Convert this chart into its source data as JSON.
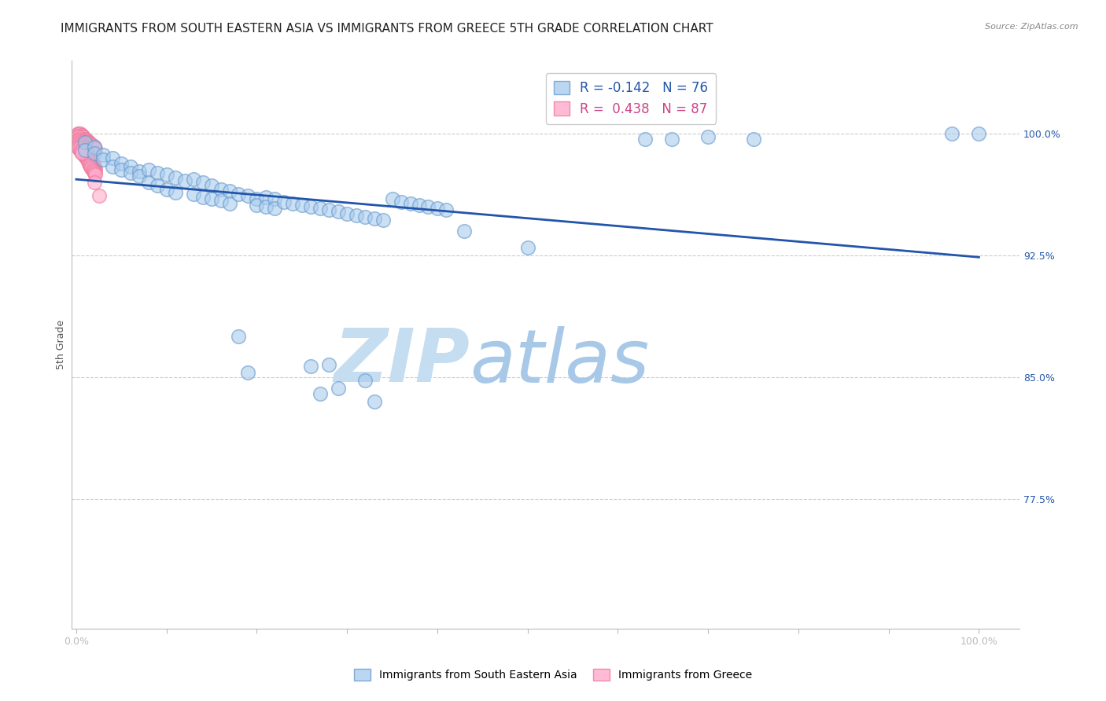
{
  "title": "IMMIGRANTS FROM SOUTH EASTERN ASIA VS IMMIGRANTS FROM GREECE 5TH GRADE CORRELATION CHART",
  "source": "Source: ZipAtlas.com",
  "ylabel": "5th Grade",
  "legend_blue_r": "R = -0.142",
  "legend_blue_n": "N = 76",
  "legend_pink_r": "R =  0.438",
  "legend_pink_n": "N = 87",
  "blue_color": "#aaccee",
  "blue_edge_color": "#6699cc",
  "pink_color": "#ffaacc",
  "pink_edge_color": "#ee7799",
  "trendline_color": "#2255aa",
  "ytick_labels": [
    "100.0%",
    "92.5%",
    "85.0%",
    "77.5%"
  ],
  "ytick_values": [
    1.0,
    0.925,
    0.85,
    0.775
  ],
  "ymin": 0.695,
  "ymax": 1.045,
  "xmin": -0.005,
  "xmax": 1.045,
  "trendline_x0": 0.0,
  "trendline_y0": 0.972,
  "trendline_x1": 1.0,
  "trendline_y1": 0.924,
  "blue_scatter_x": [
    0.01,
    0.01,
    0.02,
    0.02,
    0.03,
    0.03,
    0.04,
    0.04,
    0.05,
    0.05,
    0.06,
    0.06,
    0.07,
    0.07,
    0.08,
    0.08,
    0.09,
    0.09,
    0.1,
    0.1,
    0.11,
    0.11,
    0.12,
    0.13,
    0.13,
    0.14,
    0.14,
    0.15,
    0.15,
    0.16,
    0.16,
    0.17,
    0.17,
    0.18,
    0.19,
    0.2,
    0.2,
    0.21,
    0.21,
    0.22,
    0.22,
    0.23,
    0.24,
    0.25,
    0.26,
    0.27,
    0.28,
    0.29,
    0.3,
    0.31,
    0.32,
    0.33,
    0.34,
    0.35,
    0.36,
    0.37,
    0.38,
    0.39,
    0.4,
    0.41,
    0.43,
    0.5,
    0.63,
    0.66,
    0.7,
    0.75,
    0.97,
    1.0,
    0.18,
    0.19,
    0.26,
    0.27,
    0.28,
    0.29,
    0.32,
    0.33
  ],
  "blue_scatter_y": [
    0.995,
    0.99,
    0.992,
    0.988,
    0.987,
    0.984,
    0.985,
    0.98,
    0.982,
    0.978,
    0.98,
    0.976,
    0.977,
    0.974,
    0.978,
    0.97,
    0.976,
    0.968,
    0.975,
    0.966,
    0.973,
    0.964,
    0.971,
    0.972,
    0.963,
    0.97,
    0.961,
    0.968,
    0.96,
    0.966,
    0.959,
    0.965,
    0.957,
    0.963,
    0.962,
    0.96,
    0.956,
    0.961,
    0.955,
    0.96,
    0.954,
    0.958,
    0.957,
    0.956,
    0.955,
    0.954,
    0.953,
    0.952,
    0.951,
    0.95,
    0.949,
    0.948,
    0.947,
    0.96,
    0.958,
    0.957,
    0.956,
    0.955,
    0.954,
    0.953,
    0.94,
    0.93,
    0.997,
    0.997,
    0.998,
    0.997,
    1.0,
    1.0,
    0.875,
    0.853,
    0.857,
    0.84,
    0.858,
    0.843,
    0.848,
    0.835
  ],
  "pink_scatter_x": [
    0.002,
    0.003,
    0.004,
    0.005,
    0.006,
    0.007,
    0.008,
    0.009,
    0.01,
    0.011,
    0.012,
    0.013,
    0.014,
    0.015,
    0.016,
    0.017,
    0.018,
    0.019,
    0.02,
    0.021,
    0.002,
    0.003,
    0.004,
    0.005,
    0.006,
    0.007,
    0.008,
    0.009,
    0.01,
    0.011,
    0.012,
    0.013,
    0.014,
    0.015,
    0.016,
    0.017,
    0.018,
    0.019,
    0.02,
    0.021,
    0.002,
    0.003,
    0.004,
    0.005,
    0.006,
    0.007,
    0.008,
    0.009,
    0.01,
    0.011,
    0.012,
    0.013,
    0.014,
    0.015,
    0.016,
    0.017,
    0.018,
    0.019,
    0.02,
    0.021,
    0.002,
    0.003,
    0.004,
    0.005,
    0.006,
    0.007,
    0.008,
    0.009,
    0.01,
    0.011,
    0.012,
    0.013,
    0.014,
    0.015,
    0.016,
    0.017,
    0.018,
    0.019,
    0.02,
    0.021,
    0.002,
    0.003,
    0.004,
    0.005,
    0.006,
    0.02,
    0.025
  ],
  "pink_scatter_y": [
    1.0,
    1.0,
    1.0,
    0.999,
    0.999,
    0.998,
    0.998,
    0.997,
    0.997,
    0.996,
    0.996,
    0.995,
    0.995,
    0.994,
    0.994,
    0.993,
    0.993,
    0.992,
    0.992,
    0.991,
    0.998,
    0.997,
    0.996,
    0.995,
    0.994,
    0.993,
    0.992,
    0.991,
    0.99,
    0.989,
    0.988,
    0.987,
    0.986,
    0.985,
    0.984,
    0.983,
    0.982,
    0.981,
    0.98,
    0.979,
    0.996,
    0.995,
    0.994,
    0.993,
    0.992,
    0.991,
    0.99,
    0.989,
    0.988,
    0.987,
    0.986,
    0.985,
    0.984,
    0.983,
    0.982,
    0.981,
    0.98,
    0.979,
    0.978,
    0.977,
    0.994,
    0.993,
    0.992,
    0.991,
    0.99,
    0.989,
    0.988,
    0.987,
    0.986,
    0.985,
    0.984,
    0.983,
    0.982,
    0.981,
    0.98,
    0.979,
    0.978,
    0.977,
    0.976,
    0.975,
    0.992,
    0.991,
    0.99,
    0.989,
    0.988,
    0.97,
    0.962
  ],
  "watermark_zip": "ZIP",
  "watermark_atlas": "atlas",
  "watermark_color_zip": "#c5ddf0",
  "watermark_color_atlas": "#a8c8e8",
  "title_fontsize": 11,
  "axis_label_fontsize": 9,
  "tick_fontsize": 9,
  "legend_fontsize": 12,
  "source_fontsize": 8
}
